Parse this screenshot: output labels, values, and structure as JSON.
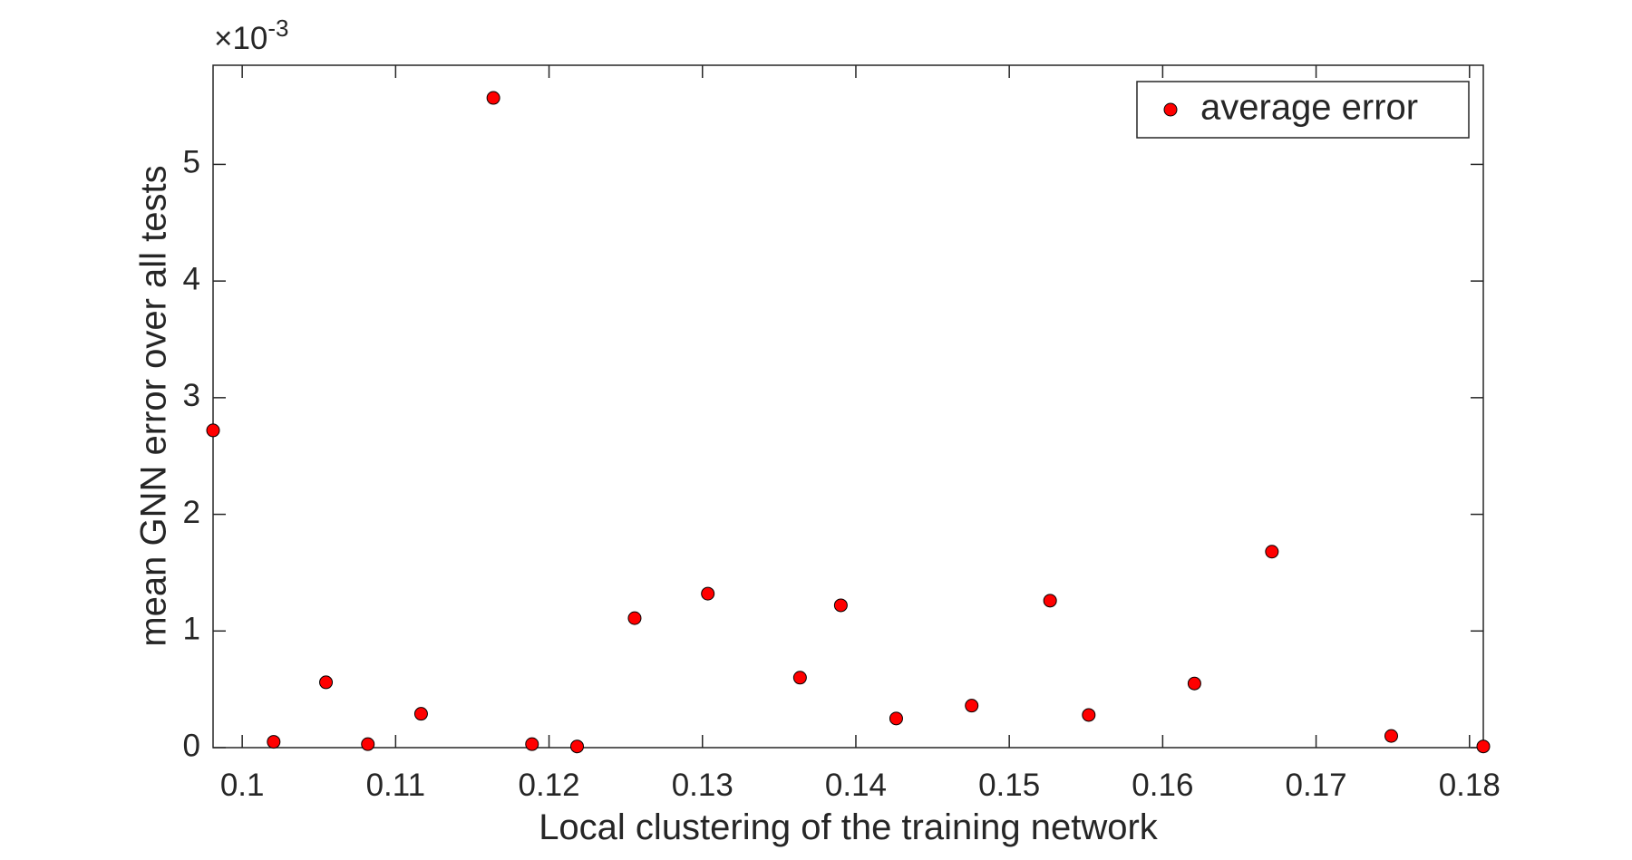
{
  "chart_data": {
    "type": "scatter",
    "x_label": "Local clustering of the training network",
    "y_label": "mean GNN error over all tests",
    "y_exponent_base": "×10",
    "y_exponent_power": "-3",
    "xlim": [
      0.0981,
      0.1809
    ],
    "ylim": [
      0,
      5.85
    ],
    "xticks": [
      0.1,
      0.11,
      0.12,
      0.13,
      0.14,
      0.15,
      0.16,
      0.17,
      0.18
    ],
    "yticks": [
      0,
      1,
      2,
      3,
      4,
      5
    ],
    "grid": false,
    "legend": "northeast",
    "series": [
      {
        "name": "average error",
        "color": "#ff0000",
        "x": [
          0.0981,
          0.10205,
          0.10546,
          0.10819,
          0.11166,
          0.11637,
          0.11889,
          0.12183,
          0.12558,
          0.13035,
          0.13636,
          0.13902,
          0.14263,
          0.14755,
          0.15266,
          0.15518,
          0.16207,
          0.16712,
          0.1749,
          0.1809
        ],
        "values": [
          2.72,
          0.05,
          0.56,
          0.03,
          0.29,
          5.57,
          0.03,
          0.01,
          1.11,
          1.32,
          0.6,
          1.22,
          0.25,
          0.36,
          1.26,
          0.28,
          0.55,
          1.68,
          0.1,
          0.01
        ]
      }
    ]
  }
}
